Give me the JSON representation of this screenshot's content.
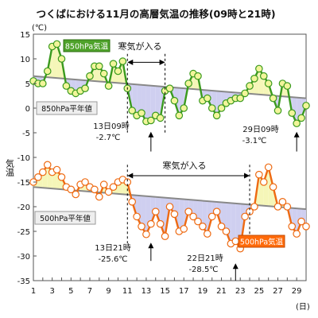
{
  "chart_data": {
    "type": "line",
    "title": "つくばにおける11月の高層気温の推移(09時と21時)",
    "y_unit": "(℃)",
    "ylabel": "気温",
    "x_unit": "(日)",
    "ylim": [
      -35,
      15
    ],
    "xlim": [
      1,
      30
    ],
    "y_ticks": [
      15,
      10,
      5,
      0,
      -5,
      -10,
      -15,
      -20,
      -25,
      -30,
      -35
    ],
    "x_ticks": [
      1,
      3,
      5,
      7,
      9,
      11,
      13,
      15,
      17,
      19,
      21,
      23,
      25,
      27,
      29
    ],
    "colors": {
      "upper_line": "#3a9a1e",
      "upper_marker_fill": "#f2f59a",
      "upper_marker_stroke": "#3a9a1e",
      "upper_label_bg": "#4ea22a",
      "lower_line": "#ee6a12",
      "lower_marker_fill": "#ffffff",
      "lower_marker_stroke": "#ee6a12",
      "lower_label_bg": "#ff6a0a",
      "normal_line": "#888888",
      "warm_fill": "#f5f6b8",
      "cold_fill": "#cfcff0"
    },
    "normal_850": {
      "name": "850hPa平年値",
      "x": [
        1,
        30
      ],
      "y": [
        6.5,
        2.0
      ]
    },
    "normal_500": {
      "name": "500hPa平年値",
      "x": [
        1,
        30
      ],
      "y": [
        -16.0,
        -20.5
      ]
    },
    "series": [
      {
        "name": "850hPa気温",
        "x": [
          1,
          1.5,
          2,
          2.5,
          3,
          3.5,
          4,
          4.5,
          5,
          5.5,
          6,
          6.5,
          7,
          7.5,
          8,
          8.5,
          9,
          9.5,
          10,
          10.5,
          11,
          11.5,
          12,
          12.5,
          13,
          13.5,
          14,
          14.5,
          15,
          15.5,
          16,
          16.5,
          17,
          17.5,
          18,
          18.5,
          19,
          19.5,
          20,
          20.5,
          21,
          21.5,
          22,
          22.5,
          23,
          23.5,
          24,
          24.5,
          25,
          25.5,
          26,
          26.5,
          27,
          27.5,
          28,
          28.5,
          29,
          29.5,
          30
        ],
        "values": [
          5.5,
          5,
          5,
          7.5,
          12.5,
          13,
          10,
          4.5,
          3.5,
          3,
          3.5,
          4,
          6.5,
          8.5,
          8.5,
          7,
          4.5,
          9,
          7.5,
          9.5,
          4,
          -0.5,
          -1.5,
          -1,
          -2.7,
          -2.5,
          -1.5,
          -2,
          3.5,
          4,
          1.5,
          -1.5,
          0,
          5,
          7,
          6.5,
          1.5,
          2,
          0,
          -1.5,
          0,
          1,
          1.5,
          2,
          2,
          3,
          4.5,
          6,
          8,
          6.5,
          5,
          2,
          -0.5,
          5,
          4.5,
          -1,
          -3.1,
          -2,
          0.5
        ]
      },
      {
        "name": "500hPa気温",
        "x": [
          1,
          1.5,
          2,
          2.5,
          3,
          3.5,
          4,
          4.5,
          5,
          5.5,
          6,
          6.5,
          7,
          7.5,
          8,
          8.5,
          9,
          9.5,
          10,
          10.5,
          11,
          11.5,
          12,
          12.5,
          13,
          13.5,
          14,
          14.5,
          15,
          15.5,
          16,
          16.5,
          17,
          17.5,
          18,
          18.5,
          19,
          19.5,
          20,
          20.5,
          21,
          21.5,
          22,
          22.5,
          23,
          23.5,
          24,
          24.5,
          25,
          25.5,
          26,
          26.5,
          27,
          27.5,
          28,
          28.5,
          29,
          29.5,
          30
        ],
        "values": [
          -15,
          -14,
          -13,
          -11.5,
          -13,
          -12.5,
          -14,
          -16,
          -16.5,
          -17.5,
          -15.5,
          -15,
          -16,
          -16.5,
          -18,
          -15.5,
          -17,
          -16,
          -15,
          -14.5,
          -15,
          -19,
          -22,
          -24,
          -25.6,
          -23.5,
          -21,
          -23.5,
          -26,
          -20,
          -21.5,
          -25,
          -24.5,
          -21,
          -22,
          -23,
          -24,
          -25.5,
          -22,
          -21,
          -24,
          -25,
          -27.5,
          -27,
          -28.5,
          -22,
          -21,
          -20,
          -13.5,
          -15,
          -12,
          -16,
          -20,
          -19,
          -20,
          -24,
          -25.5,
          -23,
          -24
        ]
      }
    ],
    "labels": {
      "legend_850": "850hPa気温",
      "legend_500": "500hPa気温",
      "normal_850": "850hPa平年値",
      "normal_500": "500hPa平年値",
      "cold_air_1": "寒気が入る",
      "cold_air_2": "寒気が入る"
    },
    "annotations": [
      {
        "line1": "13日09時",
        "line2": "-2.7℃"
      },
      {
        "line1": "29日09時",
        "line2": "-3.1℃"
      },
      {
        "line1": "13日21時",
        "line2": "-25.6℃"
      },
      {
        "line1": "22日21時",
        "line2": "-28.5℃"
      }
    ],
    "cold_air_periods": [
      {
        "label": "寒気が入る",
        "from": 11,
        "to": 15
      },
      {
        "label": "寒気が入る",
        "from": 11,
        "to": 24
      }
    ]
  }
}
